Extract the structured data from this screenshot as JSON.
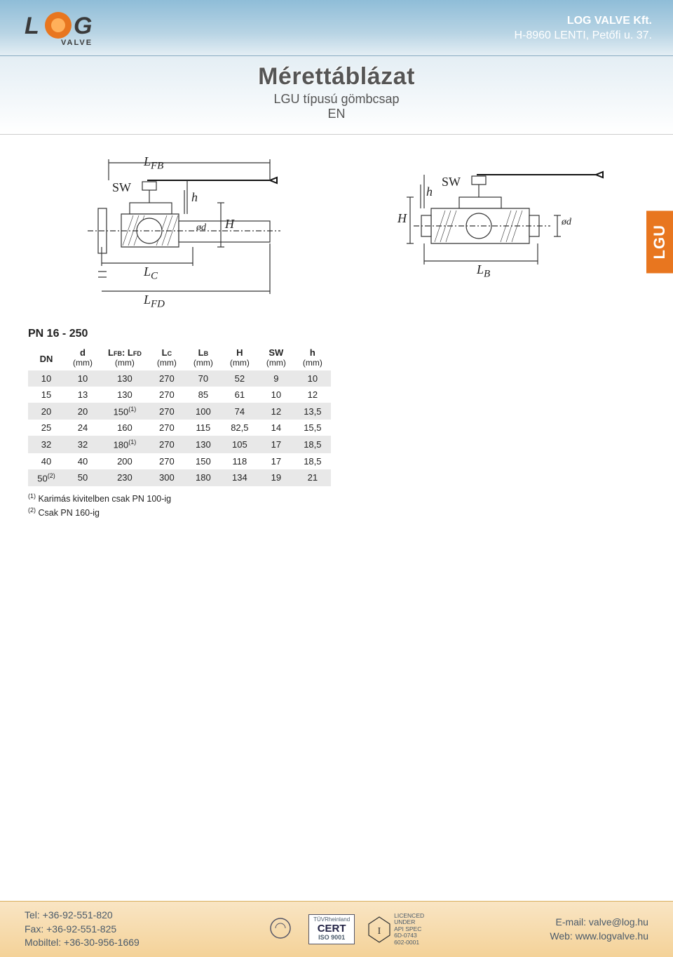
{
  "header": {
    "company_name": "LOG VALVE Kft.",
    "company_addr": "H-8960 LENTI, Petőfi u. 37.",
    "logo": {
      "text": "LOG",
      "sub": "VALVE",
      "orange": "#e8761f",
      "grey": "#3a3a3a"
    }
  },
  "title": {
    "main": "Mérettáblázat",
    "sub1": "LGU típusú gömbcsap",
    "sub2": "EN"
  },
  "side_tab": "LGU",
  "diagram_labels": {
    "LFB": "L",
    "LFB_sub": "FB",
    "SW": "SW",
    "h": "h",
    "H": "H",
    "phi_d": "ød",
    "LC": "L",
    "LC_sub": "C",
    "LFD": "L",
    "LFD_sub": "FD",
    "LB": "L",
    "LB_sub": "B"
  },
  "table": {
    "title": "PN 16 - 250",
    "columns": [
      {
        "h1": "DN",
        "h2": ""
      },
      {
        "h1": "d",
        "h2": "(mm)"
      },
      {
        "h1": "LFB: LFD",
        "h2": "(mm)"
      },
      {
        "h1": "LC",
        "h2": "(mm)"
      },
      {
        "h1": "LB",
        "h2": "(mm)"
      },
      {
        "h1": "H",
        "h2": "(mm)"
      },
      {
        "h1": "SW",
        "h2": "(mm)"
      },
      {
        "h1": "h",
        "h2": "(mm)"
      }
    ],
    "rows": [
      [
        "10",
        "10",
        "130",
        "270",
        "70",
        "52",
        "9",
        "10"
      ],
      [
        "15",
        "13",
        "130",
        "270",
        "85",
        "61",
        "10",
        "12"
      ],
      [
        "20",
        "20",
        "150",
        "270",
        "100",
        "74",
        "12",
        "13,5"
      ],
      [
        "25",
        "24",
        "160",
        "270",
        "115",
        "82,5",
        "14",
        "15,5"
      ],
      [
        "32",
        "32",
        "180",
        "270",
        "130",
        "105",
        "17",
        "18,5"
      ],
      [
        "40",
        "40",
        "200",
        "270",
        "150",
        "118",
        "17",
        "18,5"
      ],
      [
        "50",
        "50",
        "230",
        "300",
        "180",
        "134",
        "19",
        "21"
      ]
    ],
    "row_superscripts": {
      "2": {
        "col": 2,
        "sup": "(1)"
      },
      "4": {
        "col": 2,
        "sup": "(1)"
      },
      "6": {
        "col": 0,
        "sup": "(2)"
      }
    },
    "row_bg_odd": "#e8e8e8",
    "row_bg_even": "#ffffff"
  },
  "footnotes": [
    {
      "sup": "(1)",
      "text": " Karimás kivitelben csak PN 100-ig"
    },
    {
      "sup": "(2)",
      "text": " Csak PN 160-ig"
    }
  ],
  "footer": {
    "tel": "Tel: +36-92-551-820",
    "fax": "Fax: +36-92-551-825",
    "mobil": "Mobiltel: +36-30-956-1669",
    "cert1": {
      "top": "TÜVRheinland",
      "big": "CERT",
      "bottom": "ISO 9001"
    },
    "cert2": {
      "l1": "LICENCED",
      "l2": "UNDER",
      "l3": "API SPEC",
      "l4": "6D-0743",
      "l5": "602-0001"
    },
    "email": "E-mail: valve@log.hu",
    "web": "Web: www.logvalve.hu"
  },
  "colors": {
    "header_grad_top": "#8fbdd8",
    "header_grad_bottom": "#e4eef4",
    "side_tab": "#e8761f",
    "footer_grad_top": "#f9e5c4",
    "footer_grad_bottom": "#f4d298"
  }
}
